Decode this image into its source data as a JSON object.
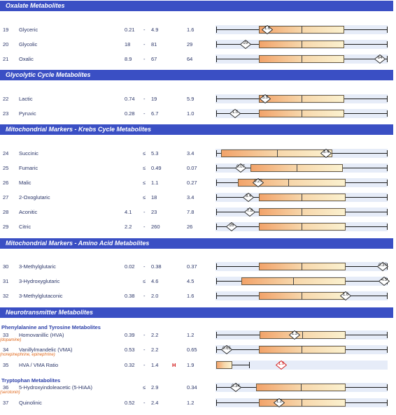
{
  "sections": [
    {
      "key": "oxalate",
      "title": "Oxalate Metabolites"
    },
    {
      "key": "glycolytic",
      "title": "Glycolytic Cycle Metabolites"
    },
    {
      "key": "krebs",
      "title": "Mitochondrial Markers - Krebs Cycle Metabolites"
    },
    {
      "key": "amino",
      "title": "Mitochondrial Markers - Amino Acid Metabolites"
    },
    {
      "key": "neuro",
      "title": "Neurotransmitter Metabolites"
    }
  ],
  "subheaders": {
    "phenyl": "Phenylalanine and Tyrosine Metabolites",
    "trypto": "Tryptophan Metabolites"
  },
  "rows": [
    {
      "num": "19",
      "name": "Glyceric",
      "low": "0.21",
      "dash": "-",
      "high": "4.9",
      "result": "1.6",
      "marker": "1.6",
      "flag": ""
    },
    {
      "num": "20",
      "name": "Glycolic",
      "low": "18",
      "dash": "-",
      "high": "81",
      "result": "29",
      "marker": "29",
      "flag": ""
    },
    {
      "num": "21",
      "name": "Oxalic",
      "low": "8.9",
      "dash": "-",
      "high": "67",
      "result": "64",
      "marker": "64",
      "flag": ""
    },
    {
      "num": "22",
      "name": "Lactic",
      "low": "0.74",
      "dash": "-",
      "high": "19",
      "result": "5.9",
      "marker": "5.9",
      "flag": ""
    },
    {
      "num": "23",
      "name": "Pyruvic",
      "low": "0.28",
      "dash": "-",
      "high": "6.7",
      "result": "1.0",
      "marker": "1.0",
      "flag": ""
    },
    {
      "num": "24",
      "name": "Succinic",
      "low": "",
      "dash": "≤",
      "high": "5.3",
      "result": "3.4",
      "marker": "3.4",
      "flag": ""
    },
    {
      "num": "25",
      "name": "Fumaric",
      "low": "",
      "dash": "≤",
      "high": "0.49",
      "result": "0.07",
      "marker": "0.07",
      "flag": ""
    },
    {
      "num": "26",
      "name": "Malic",
      "low": "",
      "dash": "≤",
      "high": "1.1",
      "result": "0.27",
      "marker": "0.27",
      "flag": ""
    },
    {
      "num": "27",
      "name": "2-Oxoglutaric",
      "low": "",
      "dash": "≤",
      "high": "18",
      "result": "3.4",
      "marker": "3.4",
      "flag": ""
    },
    {
      "num": "28",
      "name": "Aconitic",
      "low": "4.1",
      "dash": "-",
      "high": "23",
      "result": "7.8",
      "marker": "7.8",
      "flag": ""
    },
    {
      "num": "29",
      "name": "Citric",
      "low": "2.2",
      "dash": "-",
      "high": "260",
      "result": "26",
      "marker": "26",
      "flag": ""
    },
    {
      "num": "30",
      "name": "3-Methylglutaric",
      "low": "0.02",
      "dash": "-",
      "high": "0.38",
      "result": "0.37",
      "marker": "0.37",
      "flag": ""
    },
    {
      "num": "31",
      "name": "3-Hydroxyglutaric",
      "low": "",
      "dash": "≤",
      "high": "4.6",
      "result": "4.5",
      "marker": "4.5",
      "flag": ""
    },
    {
      "num": "32",
      "name": "3-Methylglutaconic",
      "low": "0.38",
      "dash": "-",
      "high": "2.0",
      "result": "1.6",
      "marker": "1.6",
      "flag": ""
    },
    {
      "num": "33",
      "name": "Homovanillic (HVA)",
      "sub": "(dopamine)",
      "low": "0.39",
      "dash": "-",
      "high": "2.2",
      "result": "1.2",
      "marker": "1.2",
      "flag": ""
    },
    {
      "num": "34",
      "name": "Vanillylmandelic (VMA)",
      "sub": "(norepinephrine, epinephrine)",
      "low": "0.53",
      "dash": "-",
      "high": "2.2",
      "result": "0.65",
      "marker": "0.65",
      "flag": ""
    },
    {
      "num": "35",
      "name": "HVA / VMA Ratio",
      "low": "0.32",
      "dash": "-",
      "high": "1.4",
      "result": "1.9",
      "marker": "1.9",
      "flag": "H"
    },
    {
      "num": "36",
      "name": "5-Hydroxyindoleacetic (5-HIAA)",
      "sub": "(serotonin)",
      "low": "",
      "dash": "≤",
      "high": "2.9",
      "result": "0.34",
      "marker": "0.34",
      "flag": ""
    },
    {
      "num": "37",
      "name": "Quinolinic",
      "low": "0.52",
      "dash": "-",
      "high": "2.4",
      "result": "1.2",
      "marker": "1.2",
      "flag": ""
    }
  ],
  "colors": {
    "header_bg": "#3a4fc4",
    "row_bg": "#e6ecf8",
    "box_start": "#f2a36a",
    "box_end": "#fbf1cf",
    "flag_high": "#d01010",
    "sub_label": "#e0681c"
  }
}
